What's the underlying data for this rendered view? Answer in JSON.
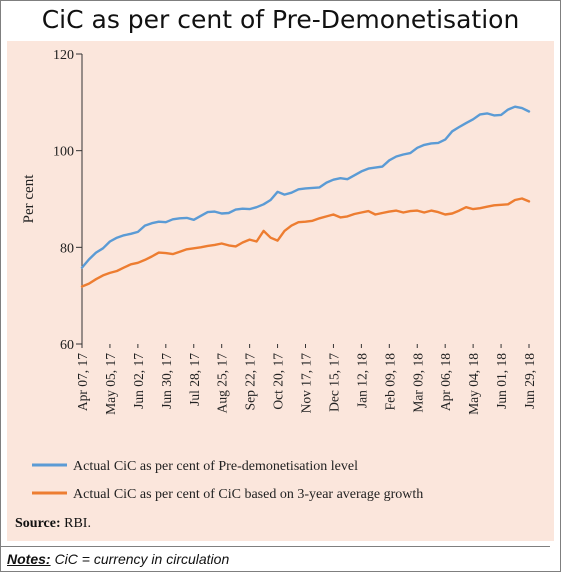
{
  "title": "CiC as per cent of Pre-Demonetisation",
  "source_label": "Source:",
  "source_text": "RBI.",
  "notes_label": "Notes:",
  "notes_text": "CiC = currency in circulation",
  "chart_data": {
    "type": "line",
    "ylabel": "Per cent",
    "ylim": [
      60,
      120
    ],
    "yticks": [
      60,
      80,
      100,
      120
    ],
    "x_tick_labels": [
      "Apr 07, 17",
      "May 05, 17",
      "Jun 02, 17",
      "Jun 30, 17",
      "Jul 28, 17",
      "Aug 25, 17",
      "Sep 22, 17",
      "Oct 20, 17",
      "Nov 17, 17",
      "Dec 15, 17",
      "Jan 12, 18",
      "Feb 09, 18",
      "Mar 09, 18",
      "Apr 06, 18",
      "May 04, 18",
      "Jun 01, 18",
      "Jun 29, 18"
    ],
    "x": [
      "Apr 07, 17",
      "Apr 14, 17",
      "Apr 21, 17",
      "Apr 28, 17",
      "May 05, 17",
      "May 12, 17",
      "May 19, 17",
      "May 26, 17",
      "Jun 02, 17",
      "Jun 09, 17",
      "Jun 16, 17",
      "Jun 23, 17",
      "Jun 30, 17",
      "Jul 07, 17",
      "Jul 14, 17",
      "Jul 21, 17",
      "Jul 28, 17",
      "Aug 04, 17",
      "Aug 11, 17",
      "Aug 18, 17",
      "Aug 25, 17",
      "Sep 01, 17",
      "Sep 08, 17",
      "Sep 15, 17",
      "Sep 22, 17",
      "Sep 29, 17",
      "Oct 06, 17",
      "Oct 13, 17",
      "Oct 20, 17",
      "Oct 27, 17",
      "Nov 03, 17",
      "Nov 10, 17",
      "Nov 17, 17",
      "Nov 24, 17",
      "Dec 01, 17",
      "Dec 08, 17",
      "Dec 15, 17",
      "Dec 22, 17",
      "Dec 29, 17",
      "Jan 05, 18",
      "Jan 12, 18",
      "Jan 19, 18",
      "Jan 26, 18",
      "Feb 02, 18",
      "Feb 09, 18",
      "Feb 16, 18",
      "Feb 23, 18",
      "Mar 02, 18",
      "Mar 09, 18",
      "Mar 16, 18",
      "Mar 23, 18",
      "Mar 30, 18",
      "Apr 06, 18",
      "Apr 13, 18",
      "Apr 20, 18",
      "Apr 27, 18",
      "May 04, 18",
      "May 11, 18",
      "May 18, 18",
      "May 25, 18",
      "Jun 01, 18",
      "Jun 08, 18",
      "Jun 15, 18",
      "Jun 22, 18",
      "Jun 29, 18"
    ],
    "series": [
      {
        "name": "Actual CiC as per cent of Pre-demonetisation level",
        "color": "#5b9bd5",
        "values": [
          75.8,
          77.5,
          78.9,
          79.8,
          81.2,
          82.0,
          82.5,
          82.8,
          83.2,
          84.5,
          85.0,
          85.3,
          85.2,
          85.8,
          86.0,
          86.1,
          85.7,
          86.5,
          87.3,
          87.4,
          87.0,
          87.1,
          87.8,
          88.0,
          87.9,
          88.3,
          88.9,
          89.8,
          91.5,
          90.9,
          91.3,
          92.0,
          92.2,
          92.3,
          92.4,
          93.4,
          94.0,
          94.3,
          94.1,
          94.9,
          95.7,
          96.3,
          96.5,
          96.7,
          98.0,
          98.8,
          99.2,
          99.5,
          100.6,
          101.2,
          101.5,
          101.6,
          102.3,
          104.0,
          104.9,
          105.7,
          106.5,
          107.5,
          107.7,
          107.3,
          107.4,
          108.5,
          109.1,
          108.8,
          108.1
        ]
      },
      {
        "name": "Actual CiC as per cent of CiC based on 3-year average growth",
        "color": "#ed7d31",
        "values": [
          71.9,
          72.5,
          73.4,
          74.2,
          74.7,
          75.1,
          75.8,
          76.5,
          76.8,
          77.4,
          78.1,
          78.9,
          78.8,
          78.6,
          79.1,
          79.6,
          79.8,
          80.0,
          80.3,
          80.5,
          80.8,
          80.4,
          80.2,
          81.0,
          81.6,
          81.2,
          83.4,
          82.0,
          81.4,
          83.4,
          84.5,
          85.2,
          85.3,
          85.5,
          86.0,
          86.4,
          86.8,
          86.2,
          86.4,
          86.9,
          87.2,
          87.5,
          86.8,
          87.1,
          87.4,
          87.6,
          87.2,
          87.5,
          87.6,
          87.2,
          87.6,
          87.3,
          86.8,
          87.0,
          87.6,
          88.3,
          87.9,
          88.1,
          88.4,
          88.7,
          88.8,
          88.9,
          89.8,
          90.1,
          89.5
        ]
      }
    ],
    "legend_position": "bottom-left",
    "grid": false
  }
}
